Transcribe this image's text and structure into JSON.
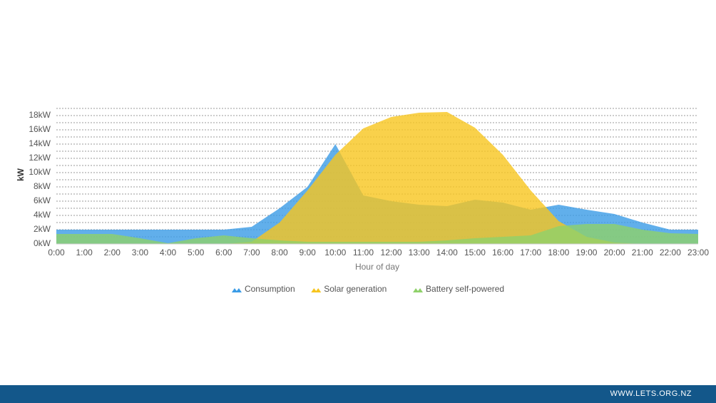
{
  "chart_data": {
    "type": "area",
    "x_label": "Hour of day",
    "y_label": "kW",
    "categories": [
      "0:00",
      "1:00",
      "2:00",
      "3:00",
      "4:00",
      "5:00",
      "6:00",
      "7:00",
      "8:00",
      "9:00",
      "10:00",
      "11:00",
      "12:00",
      "13:00",
      "14:00",
      "15:00",
      "16:00",
      "17:00",
      "18:00",
      "19:00",
      "20:00",
      "21:00",
      "22:00",
      "23:00"
    ],
    "series": [
      {
        "name": "Consumption",
        "color": "#3a9be6",
        "values": [
          2,
          2,
          2,
          2,
          2,
          2,
          2,
          2.4,
          5,
          8,
          14,
          6.8,
          6,
          5.5,
          5.3,
          6.2,
          5.8,
          4.8,
          5.5,
          4.8,
          4.2,
          3,
          2,
          2
        ]
      },
      {
        "name": "Solar generation",
        "color": "#f7c51e",
        "values": [
          0,
          0,
          0,
          0,
          0,
          0,
          0,
          0.3,
          3,
          7.5,
          12.5,
          16.2,
          17.8,
          18.4,
          18.5,
          16.3,
          12.5,
          7.5,
          3.2,
          1,
          0.2,
          0,
          0,
          0
        ]
      },
      {
        "name": "Battery self-powered",
        "color": "#8fd16a",
        "values": [
          1.4,
          1.4,
          1.4,
          0.8,
          0.1,
          0.8,
          1.2,
          0.8,
          0.5,
          0.3,
          0.3,
          0.3,
          0.3,
          0.3,
          0.5,
          0.8,
          1,
          1.2,
          2.5,
          2.8,
          2.8,
          2,
          1.5,
          1.4
        ]
      }
    ],
    "ylim": [
      0,
      19
    ],
    "yticks": [
      {
        "value": 0,
        "label": "0kW"
      },
      {
        "value": 2,
        "label": "2kW"
      },
      {
        "value": 4,
        "label": "4kW"
      },
      {
        "value": 6,
        "label": "6kW"
      },
      {
        "value": 8,
        "label": "8kW"
      },
      {
        "value": 10,
        "label": "10kW"
      },
      {
        "value": 12,
        "label": "12kW"
      },
      {
        "value": 14,
        "label": "14kW"
      },
      {
        "value": 16,
        "label": "16kW"
      },
      {
        "value": 18,
        "label": "18kW"
      }
    ],
    "minor_yticks": [
      1,
      3,
      5,
      7,
      9,
      11,
      13,
      15,
      17,
      19
    ],
    "grid": true,
    "legend": "bottom"
  },
  "footer": {
    "website": "WWW.LETS.ORG.NZ"
  }
}
